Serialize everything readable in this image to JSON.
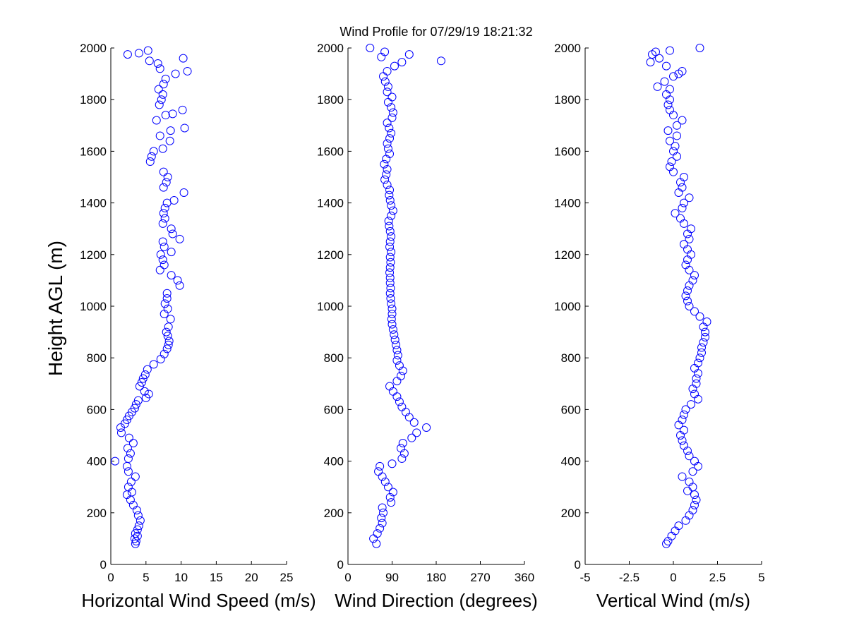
{
  "figure_title": "Wind Profile for  07/29/19 18:21:32",
  "ylabel": "Height AGL (m)",
  "colors": {
    "marker": "#0000ff",
    "axes": "#000000",
    "background": "#ffffff"
  },
  "chart_data": [
    {
      "type": "scatter",
      "xlabel": "Horizontal Wind Speed (m/s)",
      "ylabel": "Height AGL (m)",
      "xlim": [
        0,
        25
      ],
      "ylim": [
        0,
        2000
      ],
      "xticks": [
        "0",
        "5",
        "10",
        "15",
        "20",
        "25"
      ],
      "yticks": [
        "0",
        "200",
        "400",
        "600",
        "800",
        "1000",
        "1200",
        "1400",
        "1600",
        "1800",
        "2000"
      ],
      "grid": false,
      "marker": "open-circle",
      "points": [
        [
          3.5,
          80
        ],
        [
          3.6,
          90
        ],
        [
          3.4,
          100
        ],
        [
          3.8,
          110
        ],
        [
          3.5,
          120
        ],
        [
          3.8,
          135
        ],
        [
          4.0,
          150
        ],
        [
          4.2,
          170
        ],
        [
          3.9,
          190
        ],
        [
          3.7,
          210
        ],
        [
          3.2,
          230
        ],
        [
          2.8,
          250
        ],
        [
          2.3,
          270
        ],
        [
          3.0,
          280
        ],
        [
          2.5,
          300
        ],
        [
          2.9,
          320
        ],
        [
          3.5,
          340
        ],
        [
          2.5,
          360
        ],
        [
          2.3,
          380
        ],
        [
          0.6,
          400
        ],
        [
          2.5,
          410
        ],
        [
          2.8,
          430
        ],
        [
          2.4,
          450
        ],
        [
          3.2,
          470
        ],
        [
          2.6,
          490
        ],
        [
          1.5,
          510
        ],
        [
          1.4,
          530
        ],
        [
          2.0,
          545
        ],
        [
          2.3,
          560
        ],
        [
          2.6,
          575
        ],
        [
          3.0,
          590
        ],
        [
          3.4,
          605
        ],
        [
          3.6,
          620
        ],
        [
          3.9,
          635
        ],
        [
          5.0,
          645
        ],
        [
          5.4,
          660
        ],
        [
          4.8,
          670
        ],
        [
          4.1,
          690
        ],
        [
          4.4,
          705
        ],
        [
          4.6,
          720
        ],
        [
          4.9,
          735
        ],
        [
          5.2,
          755
        ],
        [
          6.1,
          775
        ],
        [
          7.1,
          795
        ],
        [
          7.6,
          815
        ],
        [
          8.0,
          835
        ],
        [
          8.2,
          850
        ],
        [
          8.3,
          865
        ],
        [
          8.1,
          885
        ],
        [
          7.9,
          900
        ],
        [
          8.2,
          920
        ],
        [
          8.5,
          950
        ],
        [
          7.6,
          970
        ],
        [
          8.1,
          990
        ],
        [
          7.7,
          1010
        ],
        [
          8.0,
          1030
        ],
        [
          8.0,
          1050
        ],
        [
          9.8,
          1080
        ],
        [
          9.5,
          1100
        ],
        [
          8.6,
          1120
        ],
        [
          7.0,
          1140
        ],
        [
          7.6,
          1160
        ],
        [
          7.4,
          1180
        ],
        [
          7.1,
          1200
        ],
        [
          8.6,
          1210
        ],
        [
          7.6,
          1230
        ],
        [
          7.4,
          1250
        ],
        [
          9.8,
          1260
        ],
        [
          8.8,
          1280
        ],
        [
          8.6,
          1300
        ],
        [
          7.4,
          1320
        ],
        [
          7.7,
          1340
        ],
        [
          7.5,
          1360
        ],
        [
          7.7,
          1380
        ],
        [
          8.0,
          1400
        ],
        [
          9.0,
          1410
        ],
        [
          10.4,
          1440
        ],
        [
          7.5,
          1460
        ],
        [
          7.9,
          1480
        ],
        [
          8.1,
          1500
        ],
        [
          7.5,
          1520
        ],
        [
          5.6,
          1560
        ],
        [
          5.8,
          1580
        ],
        [
          6.1,
          1600
        ],
        [
          7.4,
          1610
        ],
        [
          8.4,
          1640
        ],
        [
          7.0,
          1660
        ],
        [
          8.5,
          1680
        ],
        [
          10.5,
          1690
        ],
        [
          6.5,
          1720
        ],
        [
          7.8,
          1740
        ],
        [
          8.8,
          1745
        ],
        [
          10.2,
          1760
        ],
        [
          6.9,
          1780
        ],
        [
          7.2,
          1800
        ],
        [
          7.4,
          1820
        ],
        [
          6.8,
          1840
        ],
        [
          7.5,
          1860
        ],
        [
          7.8,
          1880
        ],
        [
          9.2,
          1900
        ],
        [
          7.0,
          1920
        ],
        [
          6.7,
          1940
        ],
        [
          5.5,
          1950
        ],
        [
          10.3,
          1960
        ],
        [
          2.4,
          1975
        ],
        [
          4.0,
          1980
        ],
        [
          5.3,
          1990
        ],
        [
          10.9,
          1910
        ]
      ]
    },
    {
      "type": "scatter",
      "xlabel": "Wind Direction (degrees)",
      "ylabel": "",
      "xlim": [
        0,
        360
      ],
      "ylim": [
        0,
        2000
      ],
      "xticks": [
        "0",
        "90",
        "180",
        "270",
        "360"
      ],
      "yticks": [
        "0",
        "200",
        "400",
        "600",
        "800",
        "1000",
        "1200",
        "1400",
        "1600",
        "1800",
        "2000"
      ],
      "grid": false,
      "marker": "open-circle",
      "points": [
        [
          58,
          80
        ],
        [
          52,
          100
        ],
        [
          60,
          120
        ],
        [
          65,
          140
        ],
        [
          70,
          160
        ],
        [
          68,
          180
        ],
        [
          72,
          200
        ],
        [
          70,
          220
        ],
        [
          88,
          240
        ],
        [
          86,
          260
        ],
        [
          92,
          280
        ],
        [
          82,
          300
        ],
        [
          76,
          320
        ],
        [
          70,
          340
        ],
        [
          62,
          360
        ],
        [
          65,
          380
        ],
        [
          90,
          390
        ],
        [
          110,
          410
        ],
        [
          115,
          430
        ],
        [
          108,
          450
        ],
        [
          112,
          470
        ],
        [
          130,
          490
        ],
        [
          140,
          510
        ],
        [
          160,
          530
        ],
        [
          135,
          550
        ],
        [
          125,
          570
        ],
        [
          118,
          590
        ],
        [
          110,
          610
        ],
        [
          105,
          630
        ],
        [
          100,
          650
        ],
        [
          92,
          670
        ],
        [
          85,
          690
        ],
        [
          100,
          710
        ],
        [
          108,
          730
        ],
        [
          112,
          750
        ],
        [
          105,
          770
        ],
        [
          100,
          790
        ],
        [
          102,
          810
        ],
        [
          100,
          830
        ],
        [
          98,
          850
        ],
        [
          96,
          870
        ],
        [
          94,
          890
        ],
        [
          92,
          910
        ],
        [
          90,
          930
        ],
        [
          89,
          950
        ],
        [
          90,
          970
        ],
        [
          90,
          990
        ],
        [
          88,
          1010
        ],
        [
          87,
          1030
        ],
        [
          86,
          1050
        ],
        [
          87,
          1070
        ],
        [
          86,
          1090
        ],
        [
          86,
          1110
        ],
        [
          85,
          1130
        ],
        [
          86,
          1150
        ],
        [
          87,
          1170
        ],
        [
          86,
          1190
        ],
        [
          88,
          1210
        ],
        [
          85,
          1230
        ],
        [
          86,
          1250
        ],
        [
          88,
          1270
        ],
        [
          86,
          1290
        ],
        [
          84,
          1310
        ],
        [
          83,
          1330
        ],
        [
          88,
          1350
        ],
        [
          92,
          1370
        ],
        [
          88,
          1390
        ],
        [
          86,
          1410
        ],
        [
          84,
          1430
        ],
        [
          85,
          1450
        ],
        [
          80,
          1470
        ],
        [
          75,
          1490
        ],
        [
          78,
          1510
        ],
        [
          80,
          1530
        ],
        [
          74,
          1550
        ],
        [
          78,
          1570
        ],
        [
          85,
          1590
        ],
        [
          82,
          1610
        ],
        [
          80,
          1630
        ],
        [
          85,
          1650
        ],
        [
          88,
          1670
        ],
        [
          84,
          1690
        ],
        [
          80,
          1710
        ],
        [
          90,
          1730
        ],
        [
          92,
          1750
        ],
        [
          88,
          1770
        ],
        [
          82,
          1790
        ],
        [
          90,
          1810
        ],
        [
          80,
          1830
        ],
        [
          82,
          1850
        ],
        [
          76,
          1870
        ],
        [
          72,
          1890
        ],
        [
          80,
          1910
        ],
        [
          95,
          1930
        ],
        [
          190,
          1950
        ],
        [
          68,
          1965
        ],
        [
          125,
          1975
        ],
        [
          75,
          1985
        ],
        [
          45,
          2000
        ],
        [
          110,
          1945
        ]
      ]
    },
    {
      "type": "scatter",
      "xlabel": "Vertical Wind (m/s)",
      "ylabel": "",
      "xlim": [
        -5,
        5
      ],
      "ylim": [
        0,
        2000
      ],
      "xticks": [
        "-5",
        "-2.5",
        "0",
        "2.5",
        "5"
      ],
      "yticks": [
        "0",
        "200",
        "400",
        "600",
        "800",
        "1000",
        "1200",
        "1400",
        "1600",
        "1800",
        "2000"
      ],
      "grid": false,
      "marker": "open-circle",
      "points": [
        [
          -0.4,
          80
        ],
        [
          -0.3,
          90
        ],
        [
          -0.1,
          110
        ],
        [
          0.1,
          130
        ],
        [
          0.3,
          150
        ],
        [
          0.7,
          170
        ],
        [
          0.9,
          190
        ],
        [
          1.1,
          210
        ],
        [
          1.2,
          230
        ],
        [
          1.3,
          250
        ],
        [
          1.2,
          270
        ],
        [
          0.8,
          285
        ],
        [
          1.1,
          300
        ],
        [
          0.9,
          320
        ],
        [
          0.5,
          340
        ],
        [
          1.1,
          360
        ],
        [
          1.4,
          380
        ],
        [
          1.2,
          400
        ],
        [
          0.9,
          420
        ],
        [
          0.8,
          440
        ],
        [
          0.6,
          460
        ],
        [
          0.5,
          480
        ],
        [
          0.4,
          500
        ],
        [
          0.6,
          520
        ],
        [
          0.3,
          540
        ],
        [
          0.5,
          560
        ],
        [
          0.6,
          580
        ],
        [
          0.7,
          600
        ],
        [
          1.0,
          620
        ],
        [
          1.4,
          640
        ],
        [
          1.2,
          660
        ],
        [
          1.1,
          680
        ],
        [
          1.3,
          700
        ],
        [
          1.3,
          720
        ],
        [
          1.4,
          740
        ],
        [
          1.2,
          760
        ],
        [
          1.4,
          780
        ],
        [
          1.5,
          800
        ],
        [
          1.6,
          820
        ],
        [
          1.6,
          840
        ],
        [
          1.7,
          860
        ],
        [
          1.8,
          880
        ],
        [
          1.8,
          900
        ],
        [
          1.7,
          920
        ],
        [
          1.9,
          940
        ],
        [
          1.5,
          960
        ],
        [
          1.2,
          980
        ],
        [
          0.9,
          1000
        ],
        [
          0.8,
          1020
        ],
        [
          0.7,
          1040
        ],
        [
          0.8,
          1060
        ],
        [
          0.9,
          1080
        ],
        [
          1.1,
          1100
        ],
        [
          1.2,
          1120
        ],
        [
          0.9,
          1140
        ],
        [
          0.7,
          1160
        ],
        [
          0.8,
          1180
        ],
        [
          1.0,
          1200
        ],
        [
          0.8,
          1220
        ],
        [
          0.6,
          1240
        ],
        [
          0.9,
          1260
        ],
        [
          0.8,
          1280
        ],
        [
          1.0,
          1300
        ],
        [
          0.6,
          1320
        ],
        [
          0.4,
          1340
        ],
        [
          0.1,
          1360
        ],
        [
          0.5,
          1380
        ],
        [
          0.6,
          1400
        ],
        [
          0.9,
          1420
        ],
        [
          0.3,
          1440
        ],
        [
          0.5,
          1460
        ],
        [
          0.4,
          1480
        ],
        [
          0.6,
          1500
        ],
        [
          0.0,
          1520
        ],
        [
          -0.2,
          1540
        ],
        [
          -0.1,
          1560
        ],
        [
          0.2,
          1580
        ],
        [
          0.0,
          1600
        ],
        [
          0.1,
          1620
        ],
        [
          -0.2,
          1640
        ],
        [
          0.2,
          1660
        ],
        [
          -0.3,
          1680
        ],
        [
          0.2,
          1700
        ],
        [
          0.5,
          1720
        ],
        [
          0.0,
          1740
        ],
        [
          -0.2,
          1760
        ],
        [
          -0.3,
          1780
        ],
        [
          -0.2,
          1800
        ],
        [
          -0.4,
          1820
        ],
        [
          -0.2,
          1840
        ],
        [
          -0.9,
          1850
        ],
        [
          -0.5,
          1870
        ],
        [
          0.0,
          1890
        ],
        [
          0.3,
          1900
        ],
        [
          0.5,
          1910
        ],
        [
          -0.4,
          1930
        ],
        [
          -1.3,
          1945
        ],
        [
          -0.8,
          1960
        ],
        [
          -1.2,
          1975
        ],
        [
          -1.0,
          1985
        ],
        [
          -0.2,
          1990
        ],
        [
          1.5,
          2000
        ]
      ]
    }
  ]
}
